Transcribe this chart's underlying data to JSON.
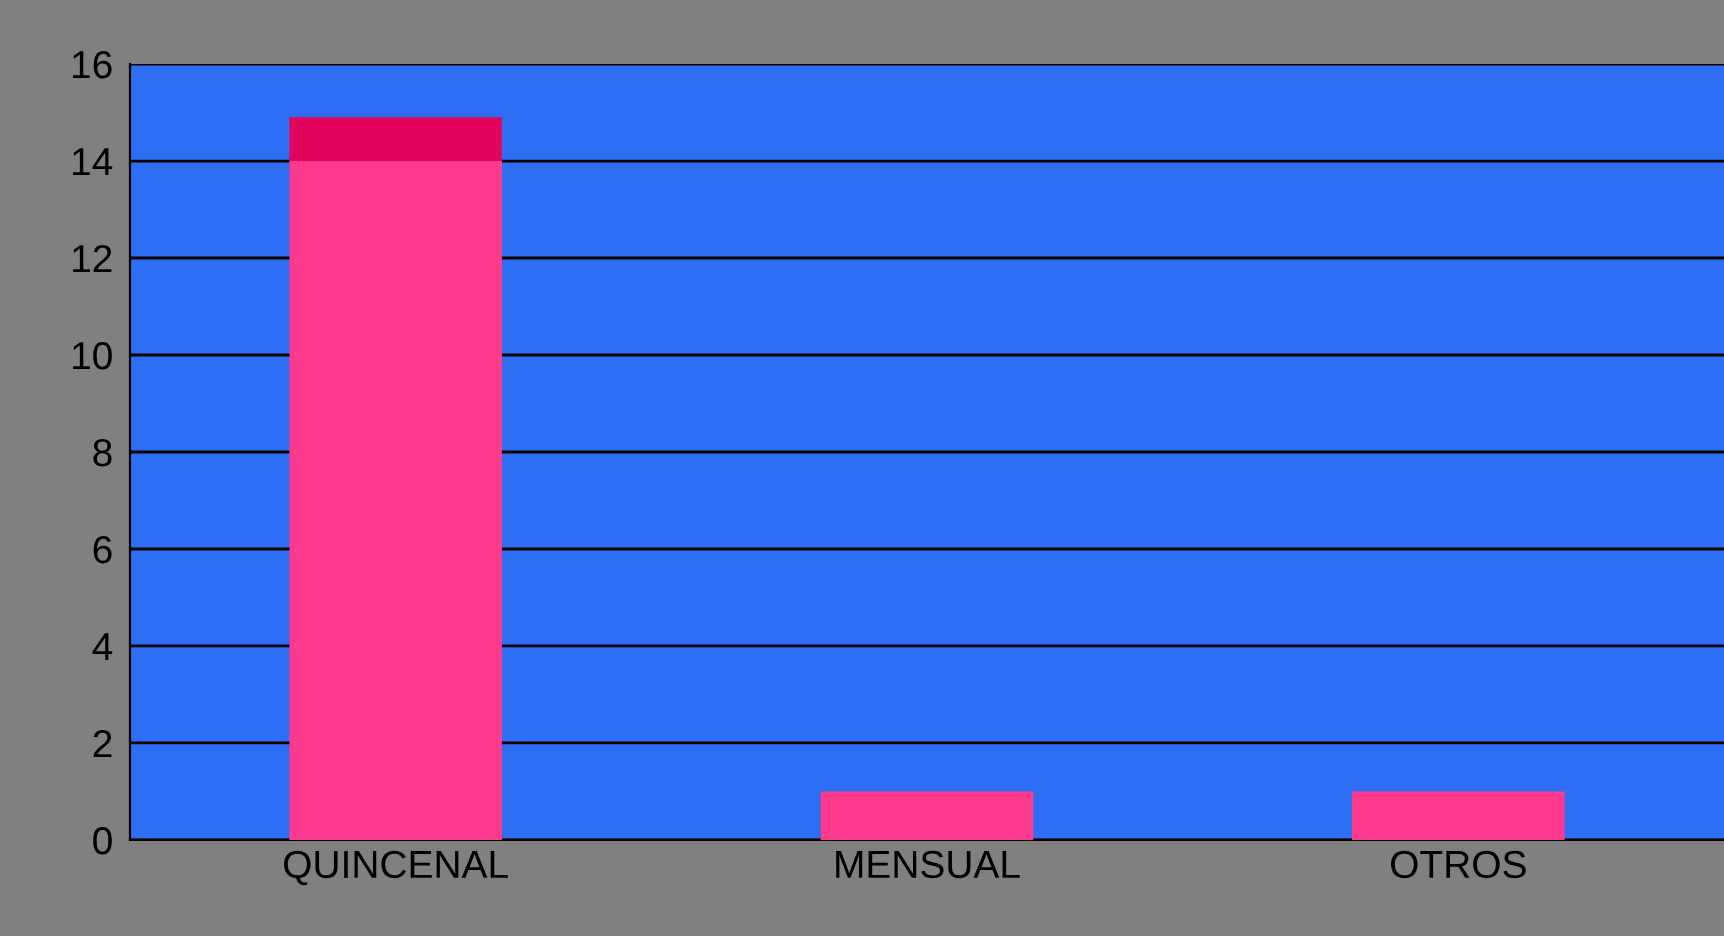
{
  "chart_data": {
    "type": "bar",
    "stacked": true,
    "categories": [
      "QUINCENAL",
      "MENSUAL",
      "OTROS"
    ],
    "series": [
      {
        "color": "#fe3a8e",
        "values": [
          14,
          1,
          1
        ]
      },
      {
        "color": "#e0045c",
        "values": [
          0.9,
          0,
          0
        ]
      }
    ],
    "ylim": [
      0,
      16
    ],
    "yticks": [
      0,
      2,
      4,
      6,
      8,
      10,
      12,
      14,
      16
    ],
    "grid": "y"
  }
}
